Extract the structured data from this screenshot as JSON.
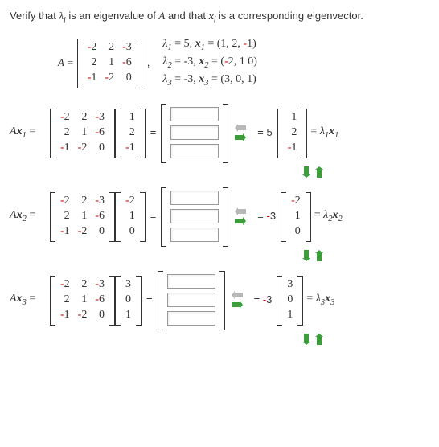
{
  "question": "Verify that λᵢ is an eigenvalue of A and that xᵢ is a corresponding eigenvector.",
  "matrixA": {
    "label": "A =",
    "rows": [
      [
        "-2",
        "2",
        "-3"
      ],
      [
        "2",
        "1",
        "-6"
      ],
      [
        "-1",
        "-2",
        "0"
      ]
    ]
  },
  "defs": [
    {
      "lambda_label": "λ",
      "lambda_sub": "1",
      "eq1": "= 5,",
      "x_label": "x",
      "x_sub": "1",
      "vec": "(1, 2, -1)"
    },
    {
      "lambda_label": "λ",
      "lambda_sub": "2",
      "eq1": "= -3,",
      "x_label": "x",
      "x_sub": "2",
      "vec": "(-2, 1 0)"
    },
    {
      "lambda_label": "λ",
      "lambda_sub": "3",
      "eq1": "= -3,",
      "x_label": "x",
      "x_sub": "3",
      "vec": "(3, 0, 1)"
    }
  ],
  "blocks": [
    {
      "lhs_label": "Ax",
      "lhs_sub": "1",
      "vec_in": [
        "1",
        "2",
        "-1"
      ],
      "scalar": "5",
      "vec_out": [
        "1",
        "2",
        "-1"
      ],
      "rhs": "= λ",
      "rhs_sub1": "1",
      "rhs_mid": "x",
      "rhs_sub2": "1"
    },
    {
      "lhs_label": "Ax",
      "lhs_sub": "2",
      "vec_in": [
        "-2",
        "1",
        "0"
      ],
      "scalar": "-3",
      "vec_out": [
        "-2",
        "1",
        "0"
      ],
      "rhs": "= λ",
      "rhs_sub1": "2",
      "rhs_mid": "x",
      "rhs_sub2": "2"
    },
    {
      "lhs_label": "Ax",
      "lhs_sub": "3",
      "vec_in": [
        "3",
        "0",
        "1"
      ],
      "scalar": "-3",
      "vec_out": [
        "3",
        "0",
        "1"
      ],
      "rhs": "= λ",
      "rhs_sub1": "3",
      "rhs_mid": "x",
      "rhs_sub2": "3"
    }
  ],
  "arrow_color_green": "#3b9e3b",
  "arrow_color_gray": "#b8b8b8",
  "neg_color": "#cc0000",
  "input_count": 3
}
